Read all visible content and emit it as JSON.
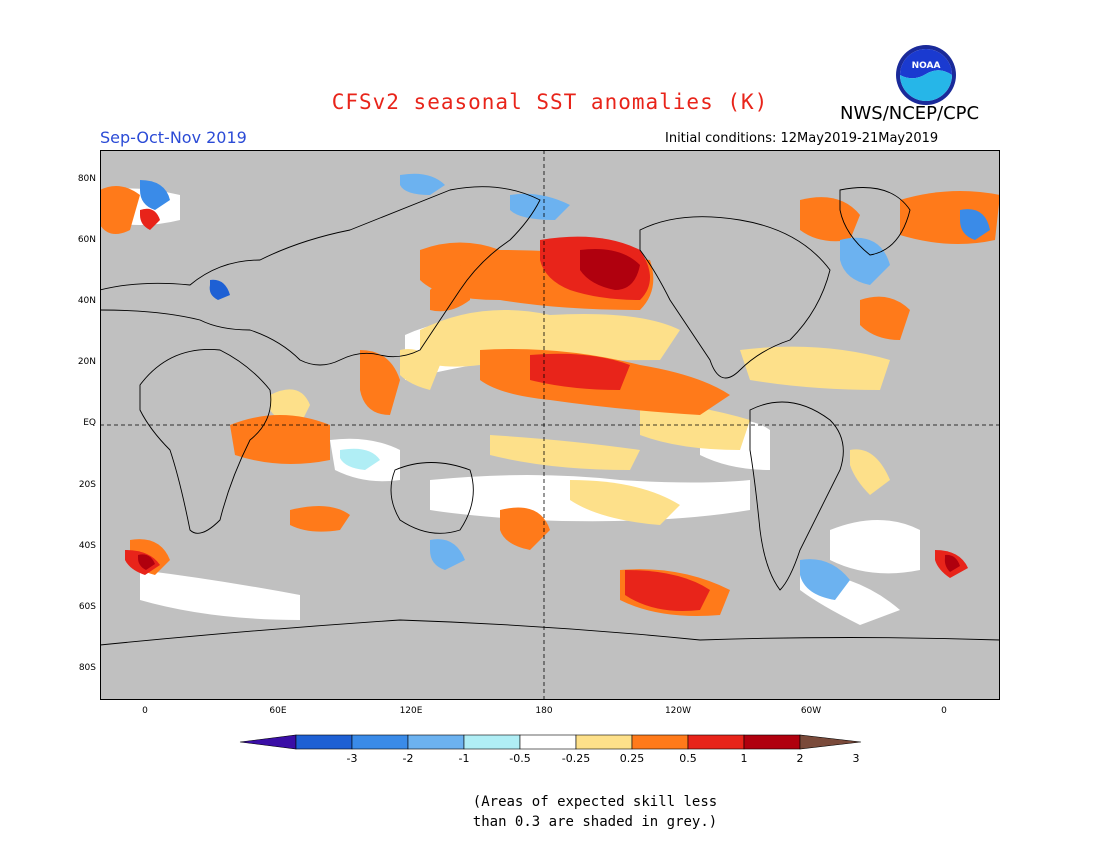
{
  "header": {
    "title": "CFSv2 seasonal SST anomalies (K)",
    "agency": "NWS/NCEP/CPC",
    "season": "Sep-Oct-Nov 2019",
    "initial_conditions": "Initial conditions: 12May2019-21May2019"
  },
  "logo": {
    "text": "NOAA",
    "icon": "noaa-logo"
  },
  "map": {
    "lat_labels": [
      "80N",
      "60N",
      "40N",
      "20N",
      "EQ",
      "20S",
      "40S",
      "60S",
      "80S"
    ],
    "lon_labels": [
      "0",
      "60E",
      "120E",
      "180",
      "120W",
      "60W",
      "0"
    ],
    "background_color": "#c0c0c0",
    "land_color": "#c0c0c0"
  },
  "colorbar": {
    "labels": [
      "-3",
      "-2",
      "-1",
      "-0.5",
      "-0.25",
      "0.25",
      "0.5",
      "1",
      "2",
      "3"
    ],
    "colors": [
      "#3a0ea6",
      "#1e60d4",
      "#3a8be8",
      "#6cb2f0",
      "#b0eef5",
      "#ffffff",
      "#fde08a",
      "#ff7a1a",
      "#e8241a",
      "#b0000e",
      "#7a4a3a"
    ]
  },
  "note": {
    "line1": "(Areas of expected skill less",
    "line2": "than 0.3 are shaded in grey.)"
  }
}
